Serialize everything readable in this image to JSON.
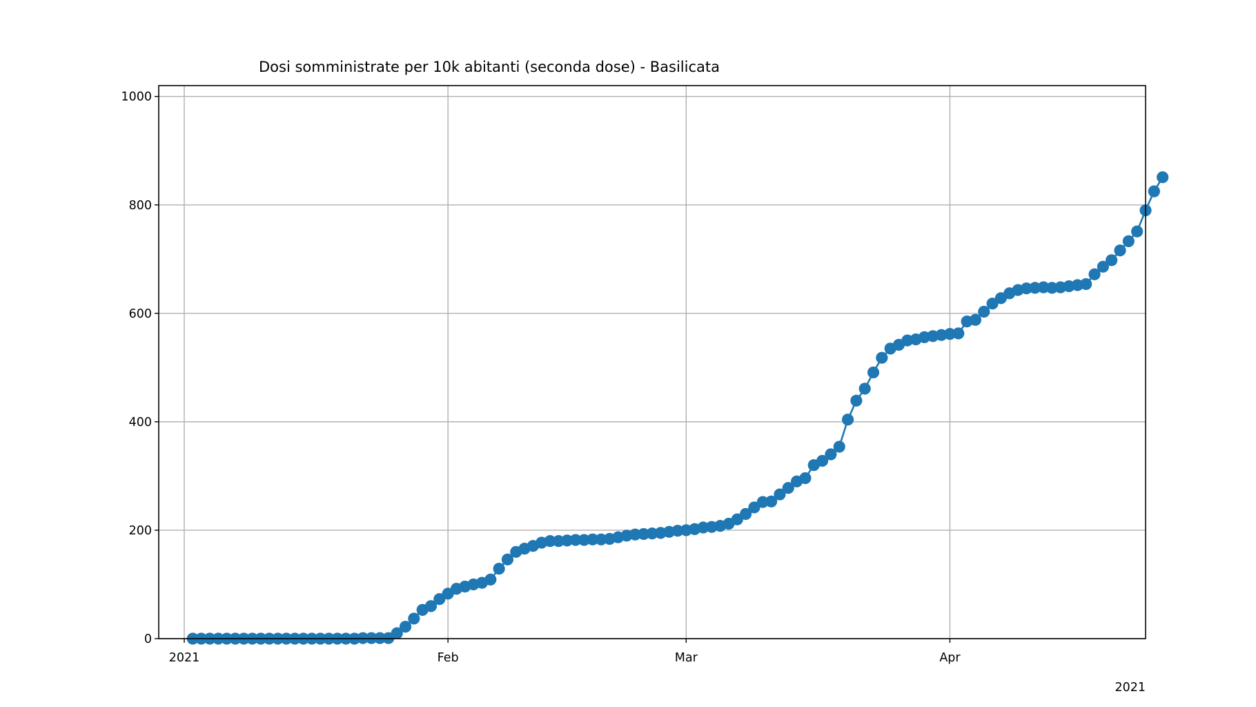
{
  "chart_data": {
    "type": "line",
    "title": "Dosi somministrate per 10k abitanti (seconda dose) - Basilicata",
    "xlabel": "",
    "ylabel": "",
    "ylim": [
      0,
      1020
    ],
    "xlim": [
      "2020-12-29",
      "2021-04-24"
    ],
    "grid": true,
    "marker": "circle",
    "color": "#1f77b4",
    "x_ticks": [
      {
        "date": "2021-01-01",
        "label": "2021"
      },
      {
        "date": "2021-02-01",
        "label": "Feb"
      },
      {
        "date": "2021-03-01",
        "label": "Mar"
      },
      {
        "date": "2021-04-01",
        "label": "Apr"
      }
    ],
    "x_offset_label": "2021",
    "y_ticks": [
      {
        "value": 0,
        "label": "0"
      },
      {
        "value": 200,
        "label": "200"
      },
      {
        "value": 400,
        "label": "400"
      },
      {
        "value": 600,
        "label": "600"
      },
      {
        "value": 800,
        "label": "800"
      },
      {
        "value": 1000,
        "label": "1000"
      }
    ],
    "series": [
      {
        "start_date": "2021-01-02",
        "values": [
          0,
          0,
          0,
          0,
          0,
          0,
          0,
          0,
          0,
          0,
          0,
          0,
          0,
          0,
          0,
          0,
          0,
          0,
          0,
          0,
          1,
          1,
          1,
          1,
          10,
          22,
          37,
          53,
          60,
          73,
          83,
          92,
          96,
          100,
          103,
          109,
          129,
          146,
          160,
          166,
          171,
          177,
          180,
          180,
          181,
          182,
          182,
          183,
          183,
          184,
          187,
          190,
          192,
          193,
          194,
          195,
          197,
          199,
          200,
          202,
          205,
          206,
          208,
          212,
          220,
          230,
          242,
          252,
          253,
          266,
          278,
          290,
          296,
          320,
          328,
          340,
          354,
          404,
          439,
          461,
          491,
          518,
          535,
          542,
          550,
          552,
          556,
          558,
          560,
          562,
          563,
          585,
          588,
          603,
          618,
          628,
          637,
          643,
          646,
          647,
          648,
          647,
          648,
          650,
          652,
          654,
          672,
          686,
          698,
          716,
          733,
          751,
          790,
          825,
          851
        ]
      }
    ]
  }
}
